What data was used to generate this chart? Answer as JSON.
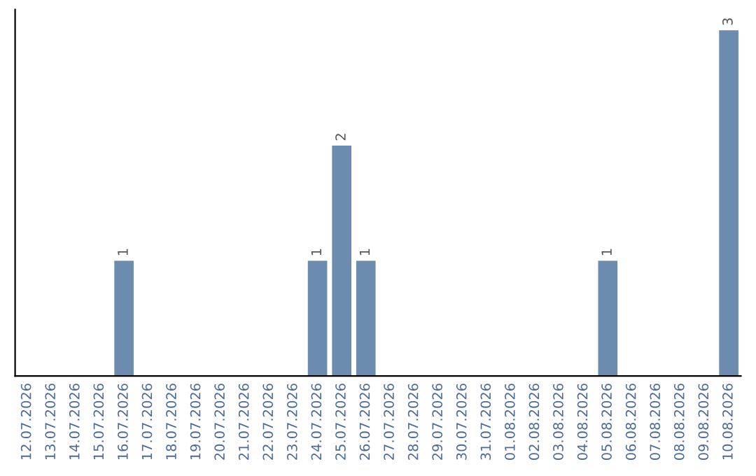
{
  "chart_data": {
    "type": "bar",
    "categories": [
      "12.07.2026",
      "13.07.2026",
      "14.07.2026",
      "15.07.2026",
      "16.07.2026",
      "17.07.2026",
      "18.07.2026",
      "19.07.2026",
      "20.07.2026",
      "21.07.2026",
      "22.07.2026",
      "23.07.2026",
      "24.07.2026",
      "25.07.2026",
      "26.07.2026",
      "27.07.2026",
      "28.07.2026",
      "29.07.2026",
      "30.07.2026",
      "31.07.2026",
      "01.08.2026",
      "02.08.2026",
      "03.08.2026",
      "04.08.2026",
      "05.08.2026",
      "06.08.2026",
      "07.08.2026",
      "08.08.2026",
      "09.08.2026",
      "10.08.2026"
    ],
    "values": [
      0,
      0,
      0,
      0,
      1,
      0,
      0,
      0,
      0,
      0,
      0,
      0,
      1,
      2,
      1,
      0,
      0,
      0,
      0,
      0,
      0,
      0,
      0,
      0,
      1,
      0,
      0,
      0,
      0,
      3
    ],
    "color": "#6b8cae",
    "value_labels": [
      null,
      null,
      null,
      null,
      "1",
      null,
      null,
      null,
      null,
      null,
      null,
      null,
      "1",
      "2",
      "1",
      null,
      null,
      null,
      null,
      null,
      null,
      null,
      null,
      null,
      "1",
      null,
      null,
      null,
      null,
      "3"
    ],
    "tick_labels": "x",
    "grid": false
  }
}
